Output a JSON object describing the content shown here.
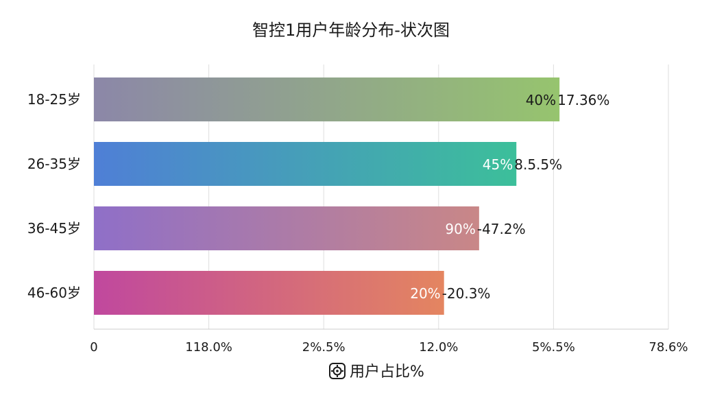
{
  "chart_data": {
    "type": "bar",
    "orientation": "horizontal",
    "title": "智控1用户年龄分布-状次图",
    "xlabel": "用户占比%",
    "xlabel_icon": "gear-badge-icon",
    "xlim": [
      0,
      78.6
    ],
    "x_ticks": [
      "0",
      "118.0%",
      "2%.5%",
      "12.0%",
      "5%.5%",
      "78.6%"
    ],
    "grid": true,
    "categories": [
      "18-25岁",
      "26-35岁",
      "36-45岁",
      "46-60岁"
    ],
    "values": [
      63.7,
      57.8,
      52.7,
      47.9
    ],
    "labels_inside": [
      "40%",
      "45%",
      "90%",
      "20%"
    ],
    "labels_outside": [
      "17.36%",
      "8.5.5%",
      "-47.2%",
      "-20.3%"
    ],
    "colors": [
      [
        "#8c87a8",
        "#96c46e"
      ],
      [
        "#4f7fd6",
        "#3cbf9a"
      ],
      [
        "#8f6fc8",
        "#c98787"
      ],
      [
        "#c0489e",
        "#e48560"
      ]
    ]
  }
}
